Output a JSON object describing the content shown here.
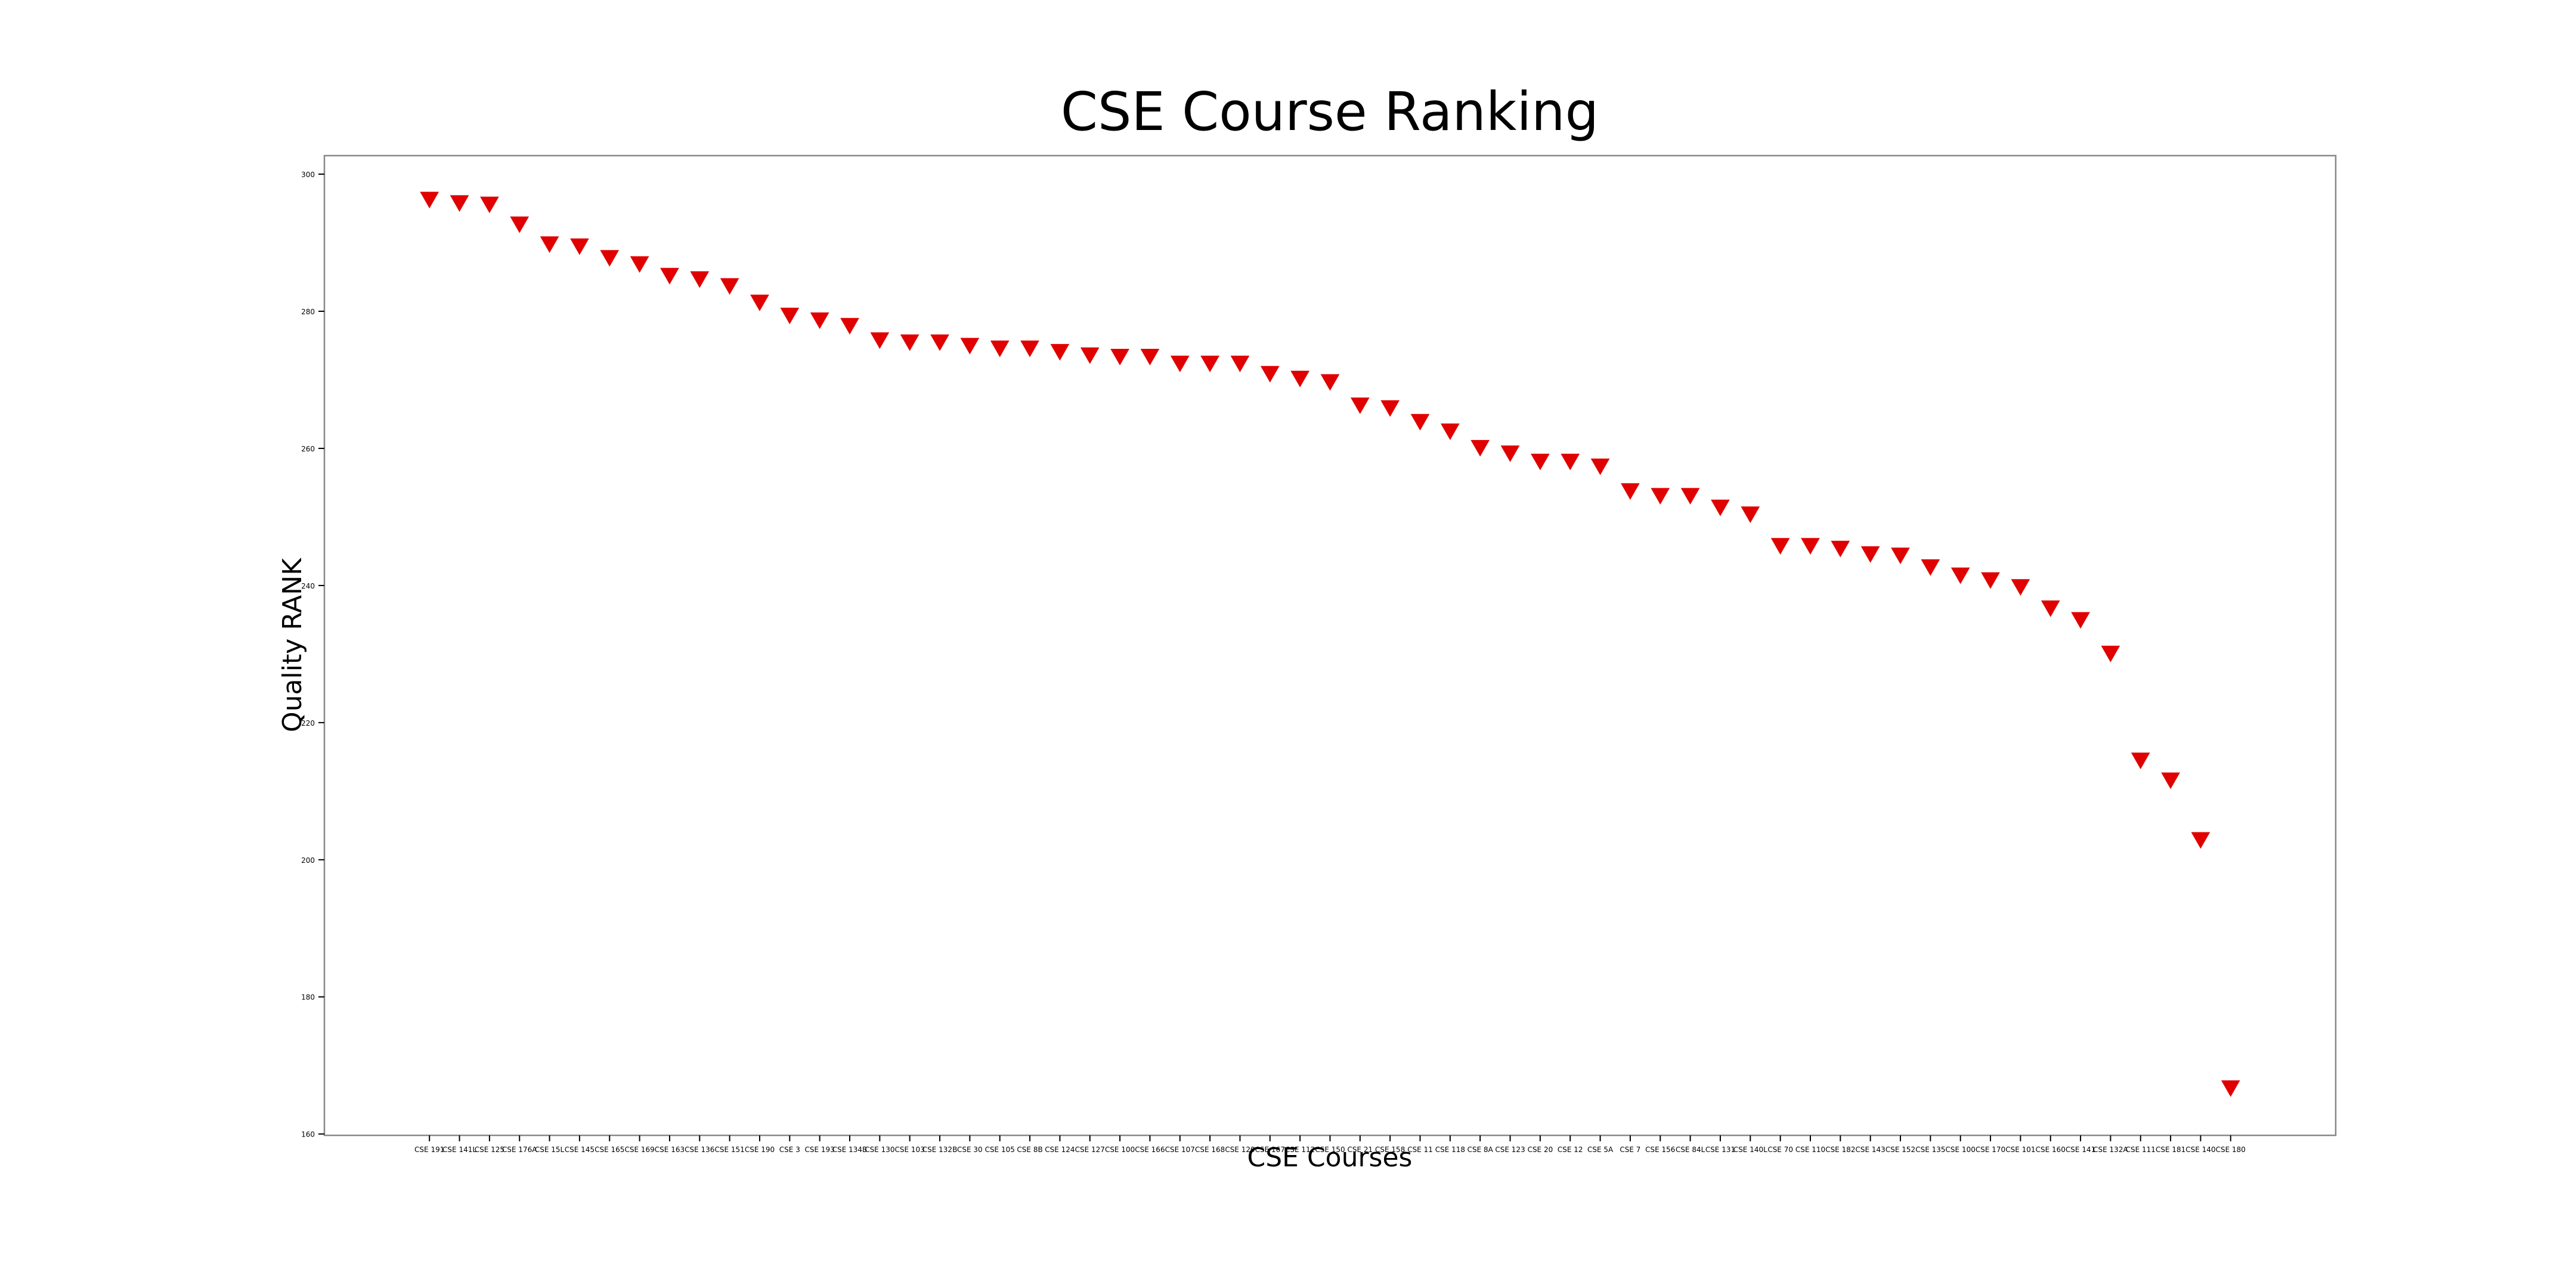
{
  "chart_data": {
    "type": "scatter",
    "title": "CSE Course Ranking",
    "x_label": "CSE Courses",
    "y_label": "Quality RANK",
    "marker": "triangle-down",
    "color": "#e00000",
    "categories": [
      "CSE 191",
      "CSE 141L",
      "CSE 125",
      "CSE 176A",
      "CSE 15L",
      "CSE 145",
      "CSE 165",
      "CSE 169",
      "CSE 163",
      "CSE 136",
      "CSE 151",
      "CSE 190",
      "CSE 3",
      "CSE 193",
      "CSE 134B",
      "CSE 130",
      "CSE 103",
      "CSE 132B",
      "CSE 30",
      "CSE 105",
      "CSE 8B",
      "CSE 124",
      "CSE 127",
      "CSE 100",
      "CSE 166",
      "CSE 107",
      "CSE 168",
      "CSE 120",
      "CSE 167",
      "CSE 112",
      "CSE 150",
      "CSE 21",
      "CSE 158",
      "CSE 11",
      "CSE 118",
      "CSE 8A",
      "CSE 123",
      "CSE 20",
      "CSE 12",
      "CSE 5A",
      "CSE 7",
      "CSE 156",
      "CSE 84L",
      "CSE 131",
      "CSE 140L",
      "CSE 70",
      "CSE 110",
      "CSE 182",
      "CSE 143",
      "CSE 152",
      "CSE 135",
      "CSE 100",
      "CSE 170",
      "CSE 101",
      "CSE 160",
      "CSE 141",
      "CSE 132A",
      "CSE 111",
      "CSE 181",
      "CSE 140",
      "CSE 180"
    ],
    "values": [
      296.4,
      295.9,
      295.7,
      292.8,
      289.9,
      289.6,
      287.9,
      287.0,
      285.3,
      284.8,
      283.8,
      281.4,
      279.5,
      278.8,
      278.0,
      275.9,
      275.6,
      275.6,
      275.1,
      274.7,
      274.7,
      274.2,
      273.7,
      273.5,
      273.5,
      272.5,
      272.5,
      272.5,
      271.0,
      270.3,
      269.8,
      266.4,
      266.0,
      264.0,
      262.6,
      260.2,
      259.4,
      258.2,
      258.2,
      257.5,
      253.9,
      253.2,
      253.2,
      251.5,
      250.5,
      245.9,
      245.9,
      245.5,
      244.7,
      244.5,
      242.8,
      241.6,
      240.9,
      239.9,
      236.8,
      235.1,
      230.2,
      214.6,
      211.7,
      203.0,
      166.8
    ],
    "ylim": [
      159.8,
      302.7
    ],
    "yticks": [
      160,
      180,
      200,
      220,
      240,
      260,
      280,
      300
    ],
    "grid": false
  }
}
